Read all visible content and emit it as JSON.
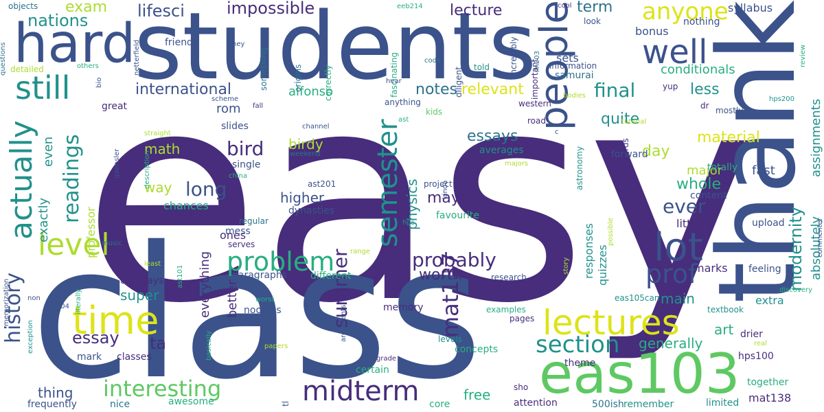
{
  "cloud": {
    "palette": {
      "purple": "#472d7b",
      "indigo": "#3b528b",
      "blue": "#2c728e",
      "teal": "#21918c",
      "green": "#28ae80",
      "lightgreen": "#5ec962",
      "lime": "#addc30",
      "yellow": "#dde318"
    },
    "words": [
      {
        "text": "easy",
        "color": "purple",
        "rank": 1
      },
      {
        "text": "students",
        "color": "indigo",
        "rank": 2
      },
      {
        "text": "class",
        "color": "indigo",
        "rank": 3
      },
      {
        "text": "thank",
        "color": "indigo",
        "rank": 4
      },
      {
        "text": "hard",
        "color": "indigo",
        "rank": 5
      },
      {
        "text": "eas103",
        "color": "lightgreen",
        "rank": 6
      },
      {
        "text": "people",
        "color": "indigo",
        "rank": 7
      },
      {
        "text": "time",
        "color": "yellow",
        "rank": 8
      },
      {
        "text": "lectures",
        "color": "yellow",
        "rank": 9
      },
      {
        "text": "well",
        "color": "indigo",
        "rank": 10
      },
      {
        "text": "lot",
        "color": "indigo",
        "rank": 11
      },
      {
        "text": "still",
        "color": "teal",
        "rank": 12
      },
      {
        "text": "actually",
        "color": "teal",
        "rank": 13
      },
      {
        "text": "level",
        "color": "lime",
        "rank": 14
      },
      {
        "text": "semester",
        "color": "teal",
        "rank": 15
      },
      {
        "text": "midterm",
        "color": "purple",
        "rank": 16
      },
      {
        "text": "problem",
        "color": "green",
        "rank": 17
      },
      {
        "text": "interesting",
        "color": "lightgreen",
        "rank": 18
      },
      {
        "text": "prof",
        "color": "indigo",
        "rank": 19
      },
      {
        "text": "anyone",
        "color": "yellow",
        "rank": 20
      },
      {
        "text": "section",
        "color": "teal",
        "rank": 21
      },
      {
        "text": "mat137",
        "color": "purple",
        "rank": 22
      },
      {
        "text": "readings",
        "color": "teal",
        "rank": 23
      },
      {
        "text": "history",
        "color": "indigo",
        "rank": 24
      },
      {
        "text": "probably",
        "color": "purple",
        "rank": 25
      },
      {
        "text": "summer",
        "color": "purple",
        "rank": 26
      },
      {
        "text": "bird",
        "color": "purple",
        "rank": 27
      },
      {
        "text": "long",
        "color": "indigo",
        "rank": 28
      },
      {
        "text": "final",
        "color": "teal",
        "rank": 29
      },
      {
        "text": "ever",
        "color": "indigo",
        "rank": 30
      },
      {
        "text": "essay",
        "color": "purple",
        "rank": 31
      },
      {
        "text": "modernity",
        "color": "teal",
        "rank": 32
      },
      {
        "text": "impossible",
        "color": "purple",
        "rank": 33
      },
      {
        "text": "lifesci",
        "color": "indigo",
        "rank": 34
      },
      {
        "text": "nations",
        "color": "teal",
        "rank": 35
      },
      {
        "text": "exam",
        "color": "lime",
        "rank": 36
      },
      {
        "text": "lecture",
        "color": "purple",
        "rank": 37
      },
      {
        "text": "term",
        "color": "blue",
        "rank": 38
      },
      {
        "text": "international",
        "color": "indigo",
        "rank": 39
      },
      {
        "text": "notes",
        "color": "blue",
        "rank": 40
      },
      {
        "text": "relevant",
        "color": "yellow",
        "rank": 41
      },
      {
        "text": "worth",
        "color": "purple",
        "rank": 42
      },
      {
        "text": "material",
        "color": "yellow",
        "rank": 43
      },
      {
        "text": "essays",
        "color": "blue",
        "rank": 44
      },
      {
        "text": "day",
        "color": "lime",
        "rank": 45
      },
      {
        "text": "quite",
        "color": "teal",
        "rank": 46
      },
      {
        "text": "whole",
        "color": "green",
        "rank": 47
      },
      {
        "text": "less",
        "color": "teal",
        "rank": 48
      },
      {
        "text": "maybe",
        "color": "purple",
        "rank": 49
      },
      {
        "text": "physics",
        "color": "teal",
        "rank": 50
      },
      {
        "text": "birdy",
        "color": "lime",
        "rank": 51
      },
      {
        "text": "way",
        "color": "lime",
        "rank": 52
      },
      {
        "text": "math",
        "color": "lime",
        "rank": 53
      },
      {
        "text": "higher",
        "color": "indigo",
        "rank": 54
      },
      {
        "text": "super",
        "color": "teal",
        "rank": 55
      },
      {
        "text": "thing",
        "color": "indigo",
        "rank": 56
      },
      {
        "text": "free",
        "color": "green",
        "rank": 57
      },
      {
        "text": "main",
        "color": "teal",
        "rank": 58
      },
      {
        "text": "art",
        "color": "green",
        "rank": 59
      },
      {
        "text": "generally",
        "color": "green",
        "rank": 60
      },
      {
        "text": "major",
        "color": "lime",
        "rank": 61
      },
      {
        "text": "fast",
        "color": "indigo",
        "rank": 62
      },
      {
        "text": "absolutely",
        "color": "teal",
        "rank": 63
      },
      {
        "text": "assignments",
        "color": "teal",
        "rank": 64
      },
      {
        "text": "better",
        "color": "purple",
        "rank": 65
      },
      {
        "text": "everything",
        "color": "purple",
        "rank": 66
      },
      {
        "text": "ta",
        "color": "purple",
        "rank": 67
      },
      {
        "text": "exactly",
        "color": "teal",
        "rank": 68
      },
      {
        "text": "even",
        "color": "teal",
        "rank": 69
      },
      {
        "text": "conditionals",
        "color": "green",
        "rank": 70
      },
      {
        "text": "rom",
        "color": "indigo",
        "rank": 71
      },
      {
        "text": "alfonso",
        "color": "green",
        "rank": 72
      },
      {
        "text": "responses",
        "color": "teal",
        "rank": 73
      },
      {
        "text": "quizzes",
        "color": "teal",
        "rank": 74
      },
      {
        "text": "extra",
        "color": "teal",
        "rank": 75
      },
      {
        "text": "marks",
        "color": "purple",
        "rank": 76
      },
      {
        "text": "mat138",
        "color": "purple",
        "rank": 77
      },
      {
        "text": "professor",
        "color": "lime",
        "rank": 78
      },
      {
        "text": "chances",
        "color": "green",
        "rank": 79
      },
      {
        "text": "little",
        "color": "purple",
        "rank": 80
      },
      {
        "text": "bonus",
        "color": "indigo",
        "rank": 81
      },
      {
        "text": "sets",
        "color": "indigo",
        "rank": 82
      },
      {
        "text": "ones",
        "color": "purple",
        "rank": 83
      },
      {
        "text": "syllabus",
        "color": "indigo",
        "rank": 84
      },
      {
        "text": "samurai",
        "color": "blue",
        "rank": 85
      },
      {
        "text": "nothing",
        "color": "indigo",
        "rank": 86
      },
      {
        "text": "friends",
        "color": "indigo",
        "rank": 87
      },
      {
        "text": "upload",
        "color": "indigo",
        "rank": 88
      },
      {
        "text": "content",
        "color": "indigo",
        "rank": 89
      },
      {
        "text": "totally",
        "color": "green",
        "rank": 90
      },
      {
        "text": "favourite",
        "color": "green",
        "rank": 91
      },
      {
        "text": "tuesdays",
        "color": "purple",
        "rank": 92
      },
      {
        "text": "paragraphs",
        "color": "indigo",
        "rank": 93
      },
      {
        "text": "averages",
        "color": "teal",
        "rank": 94
      },
      {
        "text": "single",
        "color": "indigo",
        "rank": 95
      },
      {
        "text": "dynasties",
        "color": "indigo",
        "rank": 96
      },
      {
        "text": "feeling",
        "color": "indigo",
        "rank": 97
      },
      {
        "text": "forward",
        "color": "indigo",
        "rank": 98
      },
      {
        "text": "great",
        "color": "purple",
        "rank": 99
      },
      {
        "text": "slides",
        "color": "indigo",
        "rank": 100
      },
      {
        "text": "tutorials",
        "color": "purple",
        "rank": 101
      },
      {
        "text": "mess",
        "color": "indigo",
        "rank": 102
      },
      {
        "text": "noodles",
        "color": "indigo",
        "rank": 103
      },
      {
        "text": "memory",
        "color": "purple",
        "rank": 104
      },
      {
        "text": "concepts",
        "color": "green",
        "rank": 105
      },
      {
        "text": "certain",
        "color": "green",
        "rank": 106
      },
      {
        "text": "theme",
        "color": "purple",
        "rank": 107
      },
      {
        "text": "limited",
        "color": "teal",
        "rank": 108
      },
      {
        "text": "together",
        "color": "green",
        "rank": 109
      },
      {
        "text": "drier",
        "color": "purple",
        "rank": 110
      },
      {
        "text": "hps100",
        "color": "purple",
        "rank": 111
      },
      {
        "text": "attention",
        "color": "purple",
        "rank": 112
      },
      {
        "text": "remember",
        "color": "teal",
        "rank": 113
      },
      {
        "text": "500ish",
        "color": "blue",
        "rank": 114
      },
      {
        "text": "core",
        "color": "green",
        "rank": 115
      },
      {
        "text": "nice",
        "color": "blue",
        "rank": 116
      },
      {
        "text": "awesome",
        "color": "green",
        "rank": 117
      },
      {
        "text": "frequently",
        "color": "indigo",
        "rank": 118
      },
      {
        "text": "mark",
        "color": "indigo",
        "rank": 119
      },
      {
        "text": "classes",
        "color": "purple",
        "rank": 120
      },
      {
        "text": "different",
        "color": "green",
        "rank": 121
      },
      {
        "text": "research",
        "color": "indigo",
        "rank": 122
      },
      {
        "text": "examples",
        "color": "green",
        "rank": 123
      },
      {
        "text": "pages",
        "color": "purple",
        "rank": 124
      },
      {
        "text": "eas105can",
        "color": "teal",
        "rank": 125
      },
      {
        "text": "textbook",
        "color": "teal",
        "rank": 126
      },
      {
        "text": "serves",
        "color": "purple",
        "rank": 127
      },
      {
        "text": "regular",
        "color": "blue",
        "rank": 128
      },
      {
        "text": "words",
        "color": "purple",
        "rank": 129
      },
      {
        "text": "astronomy",
        "color": "teal",
        "rank": 130
      },
      {
        "text": "something",
        "color": "blue",
        "rank": 131
      },
      {
        "text": "origins",
        "color": "blue",
        "rank": 132
      },
      {
        "text": "correctly",
        "color": "green",
        "rank": 133
      },
      {
        "text": "fascinating",
        "color": "green",
        "rank": 134
      },
      {
        "text": "diligent",
        "color": "indigo",
        "rank": 135
      },
      {
        "text": "incredibly",
        "color": "indigo",
        "rank": 136
      },
      {
        "text": "important",
        "color": "purple",
        "rank": 137
      },
      {
        "text": "information",
        "color": "indigo",
        "rank": 138
      },
      {
        "text": "anything",
        "color": "indigo",
        "rank": 139
      },
      {
        "text": "kids",
        "color": "lightgreen",
        "rank": 140
      },
      {
        "text": "road",
        "color": "purple",
        "rank": 141
      },
      {
        "text": "western",
        "color": "purple",
        "rank": 142
      },
      {
        "text": "dr",
        "color": "purple",
        "rank": 143
      },
      {
        "text": "mostly",
        "color": "indigo",
        "rank": 144
      },
      {
        "text": "yup",
        "color": "purple",
        "rank": 145
      },
      {
        "text": "told",
        "color": "teal",
        "rank": 146
      },
      {
        "text": "look",
        "color": "indigo",
        "rank": 147
      },
      {
        "text": "cool",
        "color": "purple",
        "rank": 148
      },
      {
        "text": "hey",
        "color": "indigo",
        "rank": 149
      },
      {
        "text": "eeb214",
        "color": "green",
        "rank": 150
      },
      {
        "text": "objects",
        "color": "blue",
        "rank": 151
      },
      {
        "text": "questions",
        "color": "blue",
        "rank": 152
      },
      {
        "text": "detailed",
        "color": "lime",
        "rank": 153
      },
      {
        "text": "others",
        "color": "green",
        "rank": 154
      },
      {
        "text": "bio",
        "color": "indigo",
        "rank": 155
      },
      {
        "text": "netterfield",
        "color": "indigo",
        "rank": 156
      },
      {
        "text": "hear",
        "color": "indigo",
        "rank": 157
      },
      {
        "text": "code",
        "color": "blue",
        "rank": 158
      },
      {
        "text": "lin203",
        "color": "blue",
        "rank": 159
      },
      {
        "text": "review",
        "color": "green",
        "rank": 160
      },
      {
        "text": "bodies",
        "color": "lime",
        "rank": 161
      },
      {
        "text": "hps200",
        "color": "teal",
        "rank": 162
      },
      {
        "text": "scheme",
        "color": "indigo",
        "rank": 163
      },
      {
        "text": "fall",
        "color": "purple",
        "rank": 164
      },
      {
        "text": "channel",
        "color": "indigo",
        "rank": 165
      },
      {
        "text": "ast",
        "color": "green",
        "rank": 166
      },
      {
        "text": "straight",
        "color": "lime",
        "rank": 167
      },
      {
        "text": "weekend",
        "color": "blue",
        "rank": 168
      },
      {
        "text": "china",
        "color": "green",
        "rank": 169
      },
      {
        "text": "gaensler",
        "color": "indigo",
        "rank": 170
      },
      {
        "text": "description",
        "color": "green",
        "rank": 171
      },
      {
        "text": "kinda",
        "color": "indigo",
        "rank": 172
      },
      {
        "text": "majors",
        "color": "lime",
        "rank": 173
      },
      {
        "text": "tutorial",
        "color": "lime",
        "rank": 174
      },
      {
        "text": "project",
        "color": "indigo",
        "rank": 175
      },
      {
        "text": "ast201",
        "color": "indigo",
        "rank": 176
      },
      {
        "text": "commenter",
        "color": "indigo",
        "rank": 177
      },
      {
        "text": "c",
        "color": "indigo",
        "rank": 178
      },
      {
        "text": "possible",
        "color": "lime",
        "rank": 179
      },
      {
        "text": "hps",
        "color": "teal",
        "rank": 180
      },
      {
        "text": "music",
        "color": "blue",
        "rank": 181
      },
      {
        "text": "range",
        "color": "lime",
        "rank": 182
      },
      {
        "text": "literally",
        "color": "green",
        "rank": 183
      },
      {
        "text": "least",
        "color": "lime",
        "rank": 184
      },
      {
        "text": "ast101",
        "color": "green",
        "rank": 185
      },
      {
        "text": "memorization",
        "color": "indigo",
        "rank": 186
      },
      {
        "text": "non",
        "color": "indigo",
        "rank": 187
      },
      {
        "text": "lin204",
        "color": "indigo",
        "rank": 188
      },
      {
        "text": "exception",
        "color": "teal",
        "rank": 189
      },
      {
        "text": "basically",
        "color": "green",
        "rank": 190
      },
      {
        "text": "worst",
        "color": "green",
        "rank": 191
      },
      {
        "text": "papers",
        "color": "lime",
        "rank": 192
      },
      {
        "text": "arguments",
        "color": "indigo",
        "rank": 193
      },
      {
        "text": "grade",
        "color": "purple",
        "rank": 194
      },
      {
        "text": "levels",
        "color": "teal",
        "rank": 195
      },
      {
        "text": "story",
        "color": "lime",
        "rank": 196
      },
      {
        "text": "discovery",
        "color": "green",
        "rank": 197
      },
      {
        "text": "real",
        "color": "lime",
        "rank": 198
      },
      {
        "text": "tl",
        "color": "indigo",
        "rank": 199
      },
      {
        "text": "sho",
        "color": "purple",
        "rank": 200
      }
    ]
  }
}
